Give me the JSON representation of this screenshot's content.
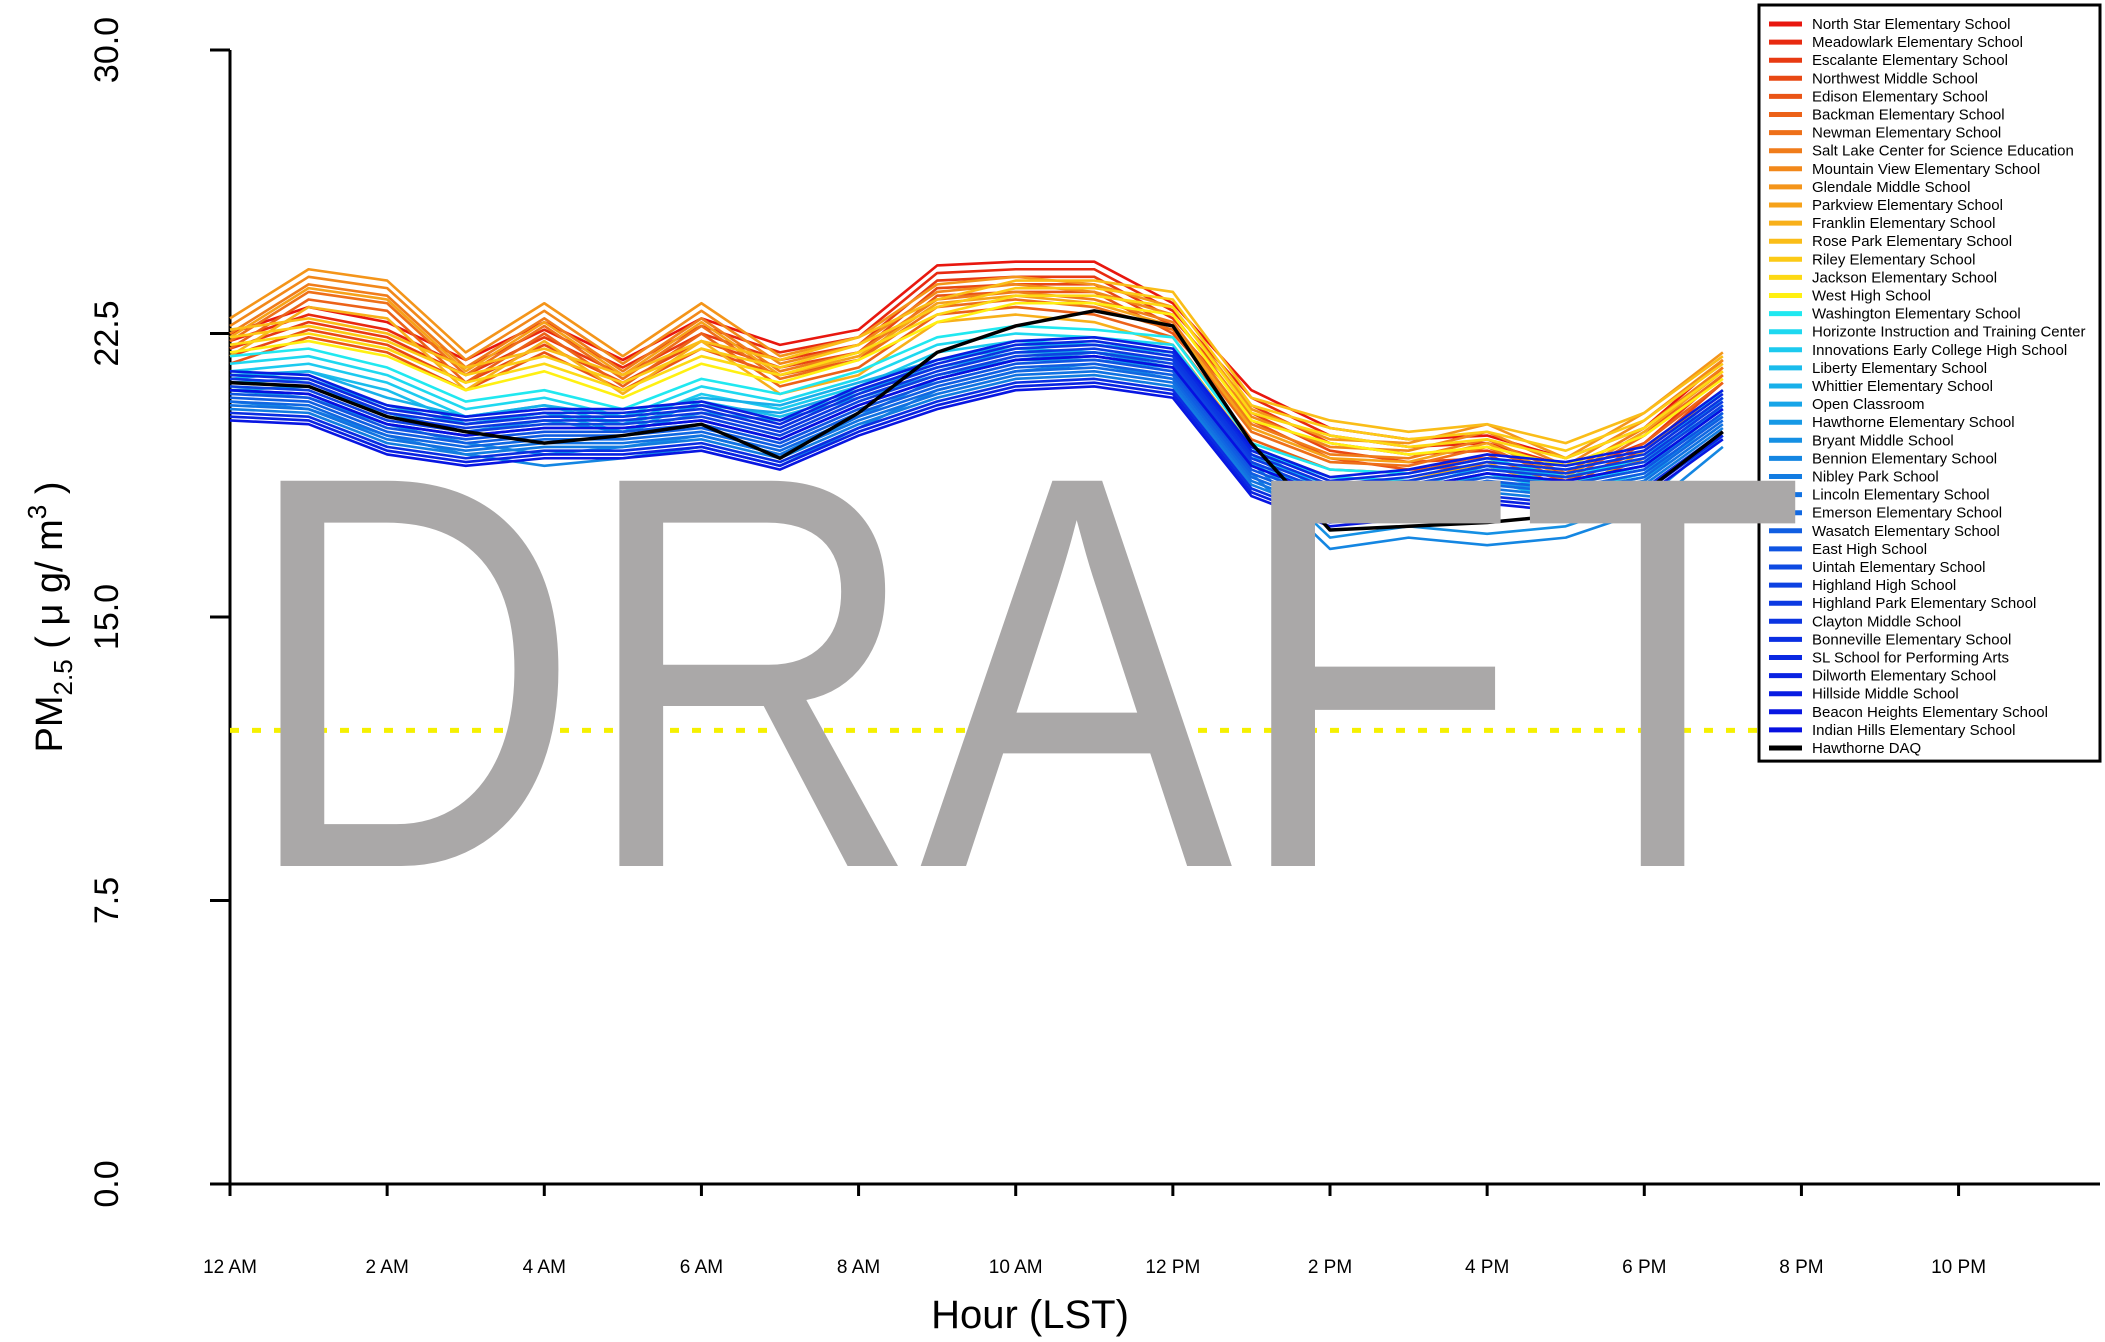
{
  "chart_data": {
    "type": "line",
    "watermark": "DRAFT",
    "x_label": "Hour (LST)",
    "y_label": {
      "base": "PM",
      "sub": "2.5",
      "mid": " ( μ g/ m",
      "sup": "3",
      "end": " )"
    },
    "xlim": [
      0,
      23.8
    ],
    "ylim": [
      0,
      30
    ],
    "xticks": [
      {
        "value": 0,
        "label": "12 AM"
      },
      {
        "value": 2,
        "label": "2 AM"
      },
      {
        "value": 4,
        "label": "4 AM"
      },
      {
        "value": 6,
        "label": "6 AM"
      },
      {
        "value": 8,
        "label": "8 AM"
      },
      {
        "value": 10,
        "label": "10 AM"
      },
      {
        "value": 12,
        "label": "12 PM"
      },
      {
        "value": 14,
        "label": "2 PM"
      },
      {
        "value": 16,
        "label": "4 PM"
      },
      {
        "value": 18,
        "label": "6 PM"
      },
      {
        "value": 20,
        "label": "8 PM"
      },
      {
        "value": 22,
        "label": "10 PM"
      }
    ],
    "yticks": [
      {
        "value": 0,
        "label": "0.0"
      },
      {
        "value": 7.5,
        "label": "7.5"
      },
      {
        "value": 15,
        "label": "15.0"
      },
      {
        "value": 22.5,
        "label": "22.5"
      },
      {
        "value": 30,
        "label": "30.0"
      }
    ],
    "reference_line": {
      "value": 12,
      "color": "#f5f000"
    },
    "legend": "upper right",
    "x": [
      0,
      1,
      2,
      3,
      4,
      5,
      6,
      7,
      8,
      9,
      10,
      11,
      12,
      13,
      14,
      15,
      16,
      17,
      18,
      19
    ],
    "series": [
      {
        "name": "North Star Elementary School",
        "color": "#e8170f",
        "values": [
          22.5,
          23.2,
          22.8,
          21.8,
          22.8,
          21.8,
          22.9,
          22.2,
          22.6,
          24.3,
          24.4,
          24.4,
          23.3,
          21.0,
          20.0,
          19.7,
          19.8,
          19.2,
          20.0,
          21.8
        ]
      },
      {
        "name": "Meadowlark Elementary School",
        "color": "#e82a10",
        "values": [
          22.3,
          23.0,
          22.6,
          21.6,
          22.6,
          21.6,
          22.7,
          22.0,
          22.4,
          24.1,
          24.2,
          24.2,
          23.1,
          20.8,
          19.8,
          19.5,
          19.6,
          19.0,
          19.8,
          21.6
        ]
      },
      {
        "name": "Escalante Elementary School",
        "color": "#e83a12",
        "values": [
          22.1,
          22.8,
          22.4,
          21.4,
          22.4,
          21.4,
          22.5,
          21.8,
          22.2,
          23.9,
          24.0,
          24.0,
          22.9,
          20.6,
          19.6,
          19.3,
          19.4,
          18.8,
          19.6,
          21.4
        ]
      },
      {
        "name": "Northwest Middle School",
        "color": "#e84814",
        "values": [
          21.9,
          22.6,
          22.2,
          21.2,
          22.2,
          21.2,
          22.3,
          21.6,
          22.0,
          23.7,
          23.8,
          23.8,
          22.7,
          20.4,
          19.4,
          19.1,
          19.2,
          18.6,
          19.4,
          21.2
        ]
      },
      {
        "name": "Edison Elementary School",
        "color": "#ea5516",
        "values": [
          21.7,
          22.4,
          22.0,
          21.0,
          22.0,
          21.0,
          22.1,
          21.4,
          21.8,
          23.5,
          23.6,
          23.6,
          22.5,
          20.2,
          19.2,
          18.9,
          19.0,
          18.4,
          19.2,
          21.0
        ]
      },
      {
        "name": "Backman Elementary School",
        "color": "#ec6218",
        "values": [
          22.1,
          23.4,
          23.1,
          21.2,
          22.5,
          21.1,
          22.5,
          21.1,
          21.6,
          23.0,
          23.2,
          23.0,
          22.4,
          19.7,
          18.9,
          18.8,
          19.3,
          18.4,
          19.6,
          21.2
        ]
      },
      {
        "name": "Newman Elementary School",
        "color": "#ee7019",
        "values": [
          22.3,
          23.6,
          23.3,
          21.4,
          22.7,
          21.3,
          22.7,
          21.3,
          21.8,
          23.2,
          23.4,
          23.2,
          22.6,
          19.9,
          19.1,
          19.0,
          19.5,
          18.6,
          19.8,
          21.4
        ]
      },
      {
        "name": "Salt Lake Center for Science Education",
        "color": "#f07c1a",
        "values": [
          22.5,
          23.8,
          23.5,
          21.6,
          22.9,
          21.5,
          22.9,
          21.5,
          22.0,
          23.4,
          23.6,
          23.4,
          22.8,
          20.1,
          19.3,
          19.2,
          19.7,
          18.8,
          20.0,
          21.6
        ]
      },
      {
        "name": "Mountain View Elementary School",
        "color": "#f2881a",
        "values": [
          22.7,
          24.0,
          23.7,
          21.8,
          23.1,
          21.7,
          23.1,
          21.7,
          22.2,
          23.6,
          23.8,
          23.6,
          23.0,
          20.3,
          19.5,
          19.4,
          19.9,
          19.0,
          20.2,
          21.8
        ]
      },
      {
        "name": "Glendale Middle School",
        "color": "#f4951a",
        "values": [
          22.9,
          24.2,
          23.9,
          22.0,
          23.3,
          21.9,
          23.3,
          21.9,
          22.4,
          23.8,
          24.0,
          23.8,
          23.2,
          20.5,
          19.7,
          19.6,
          20.1,
          19.2,
          20.4,
          22.0
        ]
      },
      {
        "name": "Parkview Elementary School",
        "color": "#f6a21a",
        "values": [
          22.4,
          23.7,
          23.4,
          21.5,
          22.8,
          21.4,
          22.8,
          21.4,
          21.9,
          23.3,
          23.5,
          23.3,
          22.7,
          20.0,
          19.2,
          19.1,
          19.6,
          18.7,
          19.9,
          21.5
        ]
      },
      {
        "name": "Franklin Elementary School",
        "color": "#f8b01a",
        "values": [
          21.9,
          23.2,
          22.9,
          21.0,
          22.3,
          20.9,
          22.3,
          20.9,
          21.4,
          22.8,
          23.0,
          22.8,
          22.2,
          19.5,
          18.7,
          18.6,
          19.1,
          18.2,
          19.4,
          21.0
        ]
      },
      {
        "name": "Rose Park Elementary School",
        "color": "#fabd18",
        "values": [
          22.6,
          22.9,
          22.5,
          21.6,
          22.1,
          21.4,
          22.3,
          21.8,
          22.4,
          23.4,
          23.9,
          23.9,
          23.6,
          20.8,
          20.2,
          19.9,
          20.1,
          19.6,
          20.4,
          21.9
        ]
      },
      {
        "name": "Riley Elementary School",
        "color": "#fcca16",
        "values": [
          22.4,
          22.7,
          22.3,
          21.4,
          21.9,
          21.2,
          22.1,
          21.6,
          22.2,
          23.2,
          23.7,
          23.7,
          23.4,
          20.6,
          20.0,
          19.7,
          19.9,
          19.4,
          20.2,
          21.7
        ]
      },
      {
        "name": "Jackson Elementary School",
        "color": "#fdd914",
        "values": [
          22.2,
          22.5,
          22.1,
          21.2,
          21.7,
          21.0,
          21.9,
          21.4,
          22.0,
          23.0,
          23.5,
          23.5,
          23.2,
          20.4,
          19.8,
          19.5,
          19.7,
          19.2,
          20.0,
          21.5
        ]
      },
      {
        "name": "West High School",
        "color": "#fff012",
        "values": [
          22.0,
          22.3,
          21.9,
          21.0,
          21.5,
          20.8,
          21.7,
          21.2,
          21.8,
          22.8,
          23.3,
          23.3,
          23.0,
          20.2,
          19.6,
          19.3,
          19.5,
          19.0,
          19.8,
          21.3
        ]
      },
      {
        "name": "Washington Elementary School",
        "color": "#20e8f0",
        "values": [
          21.9,
          22.1,
          21.6,
          20.7,
          21.0,
          20.5,
          21.3,
          20.9,
          21.5,
          22.4,
          22.7,
          22.6,
          22.4,
          19.6,
          18.9,
          18.8,
          19.2,
          18.7,
          19.2,
          21.0
        ]
      },
      {
        "name": "Horizonte Instruction and Training Center",
        "color": "#1ed8f0",
        "values": [
          21.7,
          21.9,
          21.4,
          20.5,
          20.8,
          20.3,
          21.1,
          20.7,
          21.3,
          22.2,
          22.5,
          22.4,
          22.2,
          19.4,
          18.7,
          18.6,
          19.0,
          18.5,
          19.0,
          20.8
        ]
      },
      {
        "name": "Innovations Early College High School",
        "color": "#1ccaef",
        "values": [
          21.5,
          21.7,
          21.2,
          20.3,
          20.6,
          20.1,
          20.9,
          20.5,
          21.1,
          22.0,
          22.3,
          22.2,
          22.0,
          19.2,
          18.5,
          18.4,
          18.8,
          18.3,
          18.8,
          20.6
        ]
      },
      {
        "name": "Liberty Elementary School",
        "color": "#1abcec",
        "values": [
          21.3,
          21.5,
          21.0,
          20.1,
          20.4,
          19.9,
          20.7,
          20.3,
          20.9,
          21.8,
          22.1,
          22.0,
          21.8,
          19.0,
          18.3,
          18.2,
          18.6,
          18.1,
          18.6,
          20.4
        ]
      },
      {
        "name": "Whittier Elementary School",
        "color": "#18b0ea",
        "values": [
          21.4,
          21.5,
          20.8,
          20.3,
          20.6,
          20.3,
          20.8,
          20.6,
          21.2,
          21.8,
          22.2,
          22.2,
          22.0,
          19.5,
          18.2,
          18.4,
          19.0,
          18.7,
          19.1,
          20.8
        ]
      },
      {
        "name": "Open Classroom",
        "color": "#17a5e8",
        "values": [
          21.2,
          21.3,
          20.6,
          20.1,
          20.4,
          20.1,
          20.6,
          20.4,
          21.0,
          21.6,
          22.0,
          22.0,
          21.8,
          19.3,
          18.0,
          18.2,
          18.8,
          18.5,
          18.9,
          20.6
        ]
      },
      {
        "name": "Hawthorne Elementary School",
        "color": "#1699e6",
        "values": [
          21.0,
          21.1,
          20.4,
          19.9,
          20.2,
          19.9,
          20.4,
          20.2,
          20.8,
          21.4,
          21.8,
          21.8,
          21.6,
          19.1,
          17.8,
          18.0,
          18.6,
          18.3,
          18.7,
          20.4
        ]
      },
      {
        "name": "Bryant Middle School",
        "color": "#1590e4",
        "values": [
          21.0,
          20.8,
          20.1,
          19.6,
          19.3,
          19.5,
          19.8,
          19.3,
          20.3,
          21.3,
          21.8,
          22.0,
          21.6,
          19.1,
          17.1,
          17.4,
          17.2,
          17.4,
          18.1,
          19.8
        ]
      },
      {
        "name": "Bennion Elementary School",
        "color": "#1486e2",
        "values": [
          20.7,
          20.5,
          19.8,
          19.3,
          19.0,
          19.2,
          19.5,
          19.0,
          20.0,
          21.0,
          21.5,
          21.7,
          21.3,
          18.8,
          16.8,
          17.1,
          16.9,
          17.1,
          17.8,
          19.5
        ]
      },
      {
        "name": "Nibley Park School",
        "color": "#137ce2",
        "values": [
          20.5,
          20.4,
          19.6,
          19.3,
          19.5,
          19.5,
          19.7,
          19.2,
          20.1,
          20.8,
          21.3,
          21.4,
          21.1,
          18.5,
          17.7,
          17.9,
          18.3,
          18.1,
          18.5,
          20.0
        ]
      },
      {
        "name": "Lincoln Elementary School",
        "color": "#1272e2",
        "values": [
          20.6,
          20.5,
          19.7,
          19.4,
          19.6,
          19.6,
          19.8,
          19.3,
          20.2,
          20.9,
          21.4,
          21.5,
          21.2,
          18.6,
          17.8,
          18.0,
          18.4,
          18.2,
          18.6,
          20.1
        ]
      },
      {
        "name": "Emerson Elementary School",
        "color": "#1168e2",
        "values": [
          20.7,
          20.6,
          19.8,
          19.5,
          19.7,
          19.7,
          19.9,
          19.4,
          20.3,
          21.0,
          21.5,
          21.6,
          21.3,
          18.7,
          17.9,
          18.1,
          18.5,
          18.3,
          18.7,
          20.2
        ]
      },
      {
        "name": "Wasatch Elementary School",
        "color": "#105ee2",
        "values": [
          20.8,
          20.7,
          19.9,
          19.6,
          19.8,
          19.8,
          20.0,
          19.5,
          20.4,
          21.1,
          21.6,
          21.7,
          21.4,
          18.8,
          18.0,
          18.2,
          18.6,
          18.4,
          18.8,
          20.3
        ]
      },
      {
        "name": "East High School",
        "color": "#0f54e2",
        "values": [
          20.9,
          20.8,
          20.0,
          19.7,
          19.9,
          19.9,
          20.1,
          19.6,
          20.5,
          21.2,
          21.7,
          21.8,
          21.5,
          18.9,
          18.1,
          18.3,
          18.7,
          18.5,
          18.9,
          20.4
        ]
      },
      {
        "name": "Uintah Elementary School",
        "color": "#0e4ae2",
        "values": [
          21.0,
          20.9,
          20.1,
          19.8,
          20.0,
          20.0,
          20.2,
          19.7,
          20.6,
          21.3,
          21.8,
          21.9,
          21.6,
          19.0,
          18.2,
          18.4,
          18.8,
          18.6,
          19.0,
          20.5
        ]
      },
      {
        "name": "Highland High School",
        "color": "#0d42e2",
        "values": [
          21.1,
          21.0,
          20.2,
          19.9,
          20.1,
          20.1,
          20.3,
          19.8,
          20.7,
          21.4,
          21.9,
          22.0,
          21.7,
          19.1,
          18.3,
          18.5,
          18.9,
          18.7,
          19.1,
          20.6
        ]
      },
      {
        "name": "Highland Park Elementary School",
        "color": "#0c3ae2",
        "values": [
          21.2,
          21.1,
          20.3,
          20.0,
          20.2,
          20.2,
          20.4,
          19.9,
          20.8,
          21.5,
          22.0,
          22.1,
          21.8,
          19.2,
          18.4,
          18.6,
          19.0,
          18.8,
          19.2,
          20.7
        ]
      },
      {
        "name": "Clayton Middle School",
        "color": "#0b34e2",
        "values": [
          21.3,
          21.2,
          20.4,
          20.1,
          20.3,
          20.3,
          20.5,
          20.0,
          20.9,
          21.6,
          22.1,
          22.2,
          21.9,
          19.3,
          18.5,
          18.7,
          19.1,
          18.9,
          19.3,
          20.8
        ]
      },
      {
        "name": "Bonneville Elementary School",
        "color": "#0a2ee2",
        "values": [
          20.4,
          20.3,
          19.5,
          19.2,
          19.4,
          19.4,
          19.6,
          19.1,
          20.0,
          20.7,
          21.2,
          21.3,
          21.0,
          18.4,
          17.6,
          17.8,
          18.2,
          18.0,
          18.4,
          19.9
        ]
      },
      {
        "name": "SL School for Performing Arts",
        "color": "#0a28e2",
        "values": [
          21.4,
          21.3,
          20.5,
          20.2,
          20.4,
          20.4,
          20.6,
          20.1,
          21.0,
          21.7,
          22.2,
          22.3,
          22.0,
          19.4,
          18.6,
          18.8,
          19.2,
          19.0,
          19.4,
          20.9
        ]
      },
      {
        "name": "Dilworth Elementary School",
        "color": "#0922e2",
        "values": [
          20.3,
          20.2,
          19.4,
          19.1,
          19.3,
          19.3,
          19.5,
          19.0,
          19.9,
          20.6,
          21.1,
          21.2,
          20.9,
          18.3,
          17.5,
          17.7,
          18.1,
          17.9,
          18.3,
          19.8
        ]
      },
      {
        "name": "Hillside Middle School",
        "color": "#081ce2",
        "values": [
          21.5,
          21.4,
          20.6,
          20.3,
          20.5,
          20.5,
          20.7,
          20.2,
          21.1,
          21.8,
          22.3,
          22.4,
          22.1,
          19.5,
          18.7,
          18.9,
          19.3,
          19.1,
          19.5,
          21.0
        ]
      },
      {
        "name": "Beacon Heights Elementary School",
        "color": "#0816e2",
        "values": [
          20.2,
          20.1,
          19.3,
          19.0,
          19.2,
          19.2,
          19.4,
          18.9,
          19.8,
          20.5,
          21.0,
          21.1,
          20.8,
          18.2,
          17.4,
          17.6,
          18.0,
          17.8,
          18.2,
          19.7
        ]
      },
      {
        "name": "Indian Hills Elementary School",
        "color": "#0710e0",
        "values": [
          21.0,
          20.9,
          20.1,
          19.8,
          20.0,
          20.0,
          20.2,
          19.7,
          20.6,
          21.3,
          21.8,
          21.9,
          21.6,
          19.0,
          18.2,
          18.4,
          18.8,
          18.6,
          19.0,
          20.5
        ]
      },
      {
        "name": "Hawthorne DAQ",
        "color": "#000000",
        "values": [
          21.2,
          21.1,
          20.3,
          19.9,
          19.6,
          19.8,
          20.1,
          19.2,
          20.4,
          22.0,
          22.7,
          23.1,
          22.7,
          19.6,
          17.3,
          17.4,
          17.5,
          17.7,
          18.3,
          19.9
        ]
      }
    ]
  }
}
